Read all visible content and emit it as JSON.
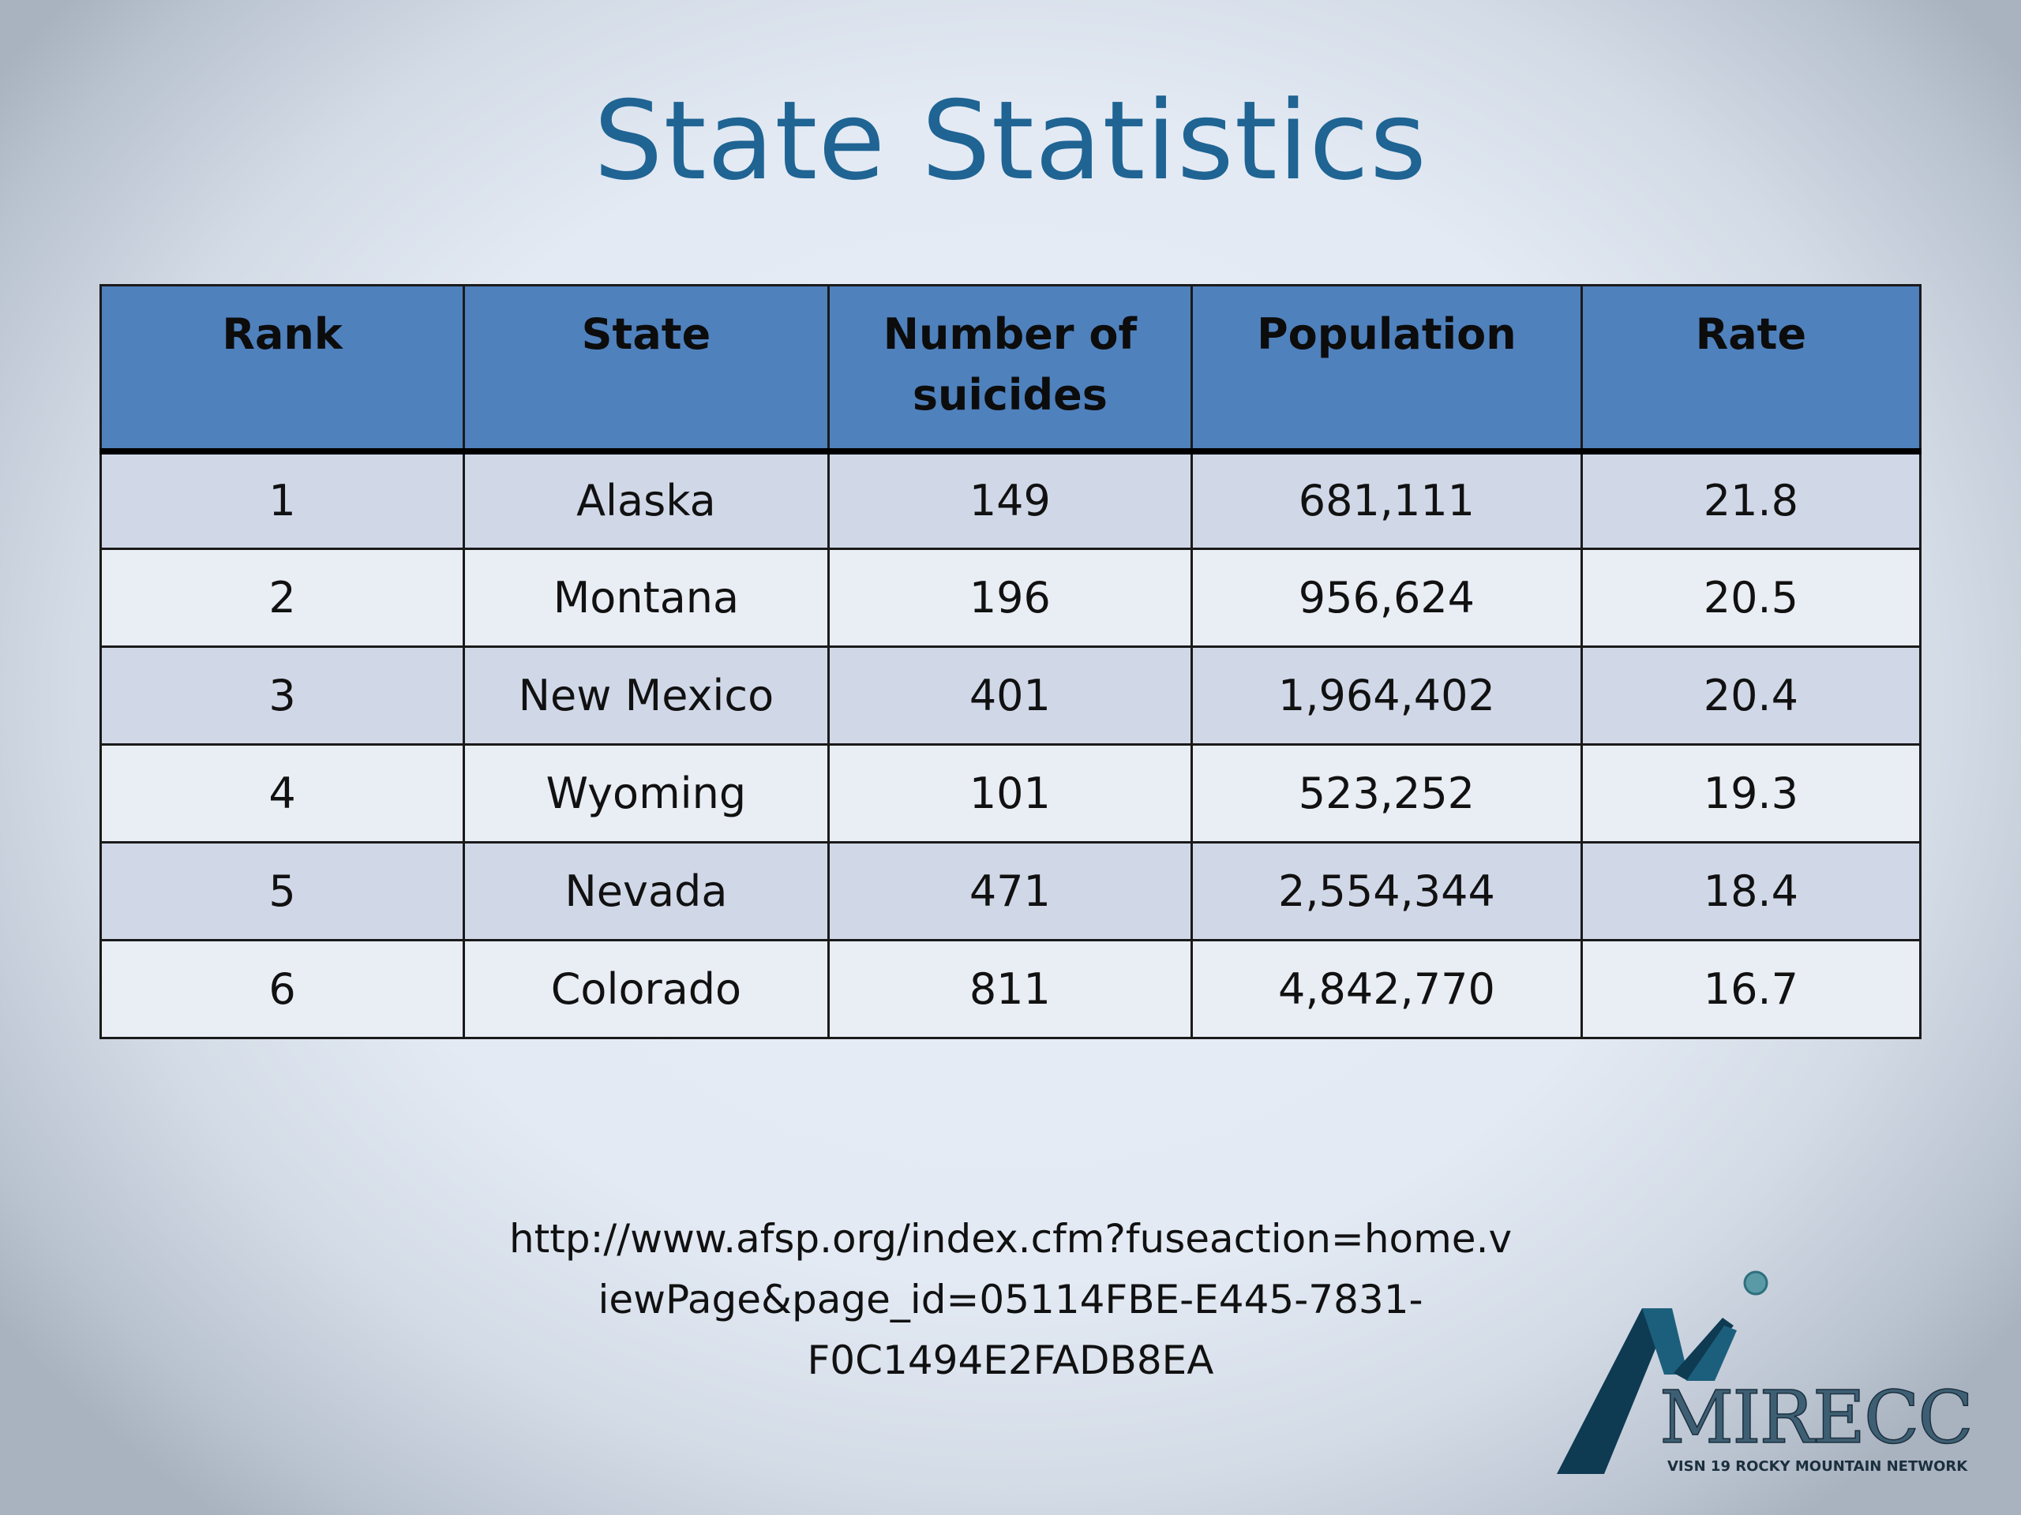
{
  "slide": {
    "title": "State Statistics"
  },
  "table": {
    "headers": [
      "Rank",
      "State",
      "Number of suicides",
      "Population",
      "Rate"
    ],
    "rows": [
      [
        "1",
        "Alaska",
        "149",
        "681,111",
        "21.8"
      ],
      [
        "2",
        "Montana",
        "196",
        "956,624",
        "20.5"
      ],
      [
        "3",
        "New Mexico",
        "401",
        "1,964,402",
        "20.4"
      ],
      [
        "4",
        "Wyoming",
        "101",
        "523,252",
        "19.3"
      ],
      [
        "5",
        "Nevada",
        "471",
        "2,554,344",
        "18.4"
      ],
      [
        "6",
        "Colorado",
        "811",
        "4,842,770",
        "16.7"
      ]
    ]
  },
  "source": {
    "lines": [
      "http://www.afsp.org/index.cfm?fuseaction=home.v",
      "iewPage&page_id=05114FBE-E445-7831-",
      "F0C1494E2FADB8EA"
    ]
  },
  "logo": {
    "name": "MIRECC",
    "tagline": "VISN 19 ROCKY MOUNTAIN NETWORK",
    "colors": {
      "mountain_dark": "#0e3a52",
      "mountain_mid": "#1c5f7c",
      "dot": "#5a9aa6"
    }
  },
  "colors": {
    "title": "#1f6493",
    "header_fill": "#4f81bd",
    "row_band_odd": "#d0d8e8",
    "row_band_even": "#e9edf4"
  }
}
